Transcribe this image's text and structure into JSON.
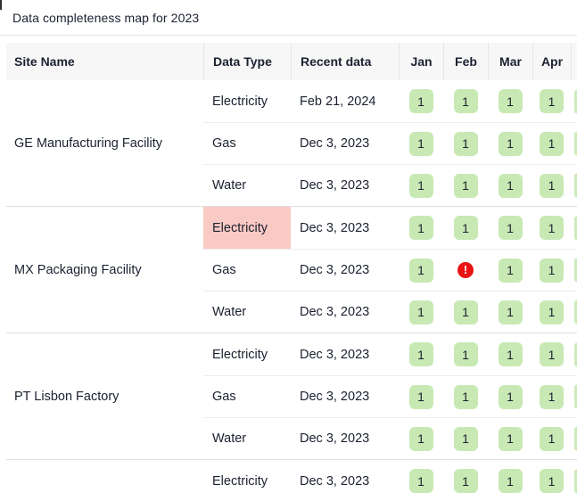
{
  "title": "Data completeness map for 2023",
  "table": {
    "columns": [
      {
        "key": "site",
        "label": "Site Name"
      },
      {
        "key": "type",
        "label": "Data Type"
      },
      {
        "key": "recent",
        "label": "Recent data"
      },
      {
        "key": "jan",
        "label": "Jan"
      },
      {
        "key": "feb",
        "label": "Feb"
      },
      {
        "key": "mar",
        "label": "Mar"
      },
      {
        "key": "apr",
        "label": "Apr"
      }
    ],
    "alert_icon": "!",
    "groups": [
      {
        "site": "GE Manufacturing Facility",
        "rows": [
          {
            "data_type": "Electricity",
            "recent_data": "Feb 21, 2024",
            "months": [
              "1",
              "1",
              "1",
              "1"
            ],
            "highlight_type_cell": false
          },
          {
            "data_type": "Gas",
            "recent_data": "Dec 3, 2023",
            "months": [
              "1",
              "1",
              "1",
              "1"
            ],
            "highlight_type_cell": false
          },
          {
            "data_type": "Water",
            "recent_data": "Dec 3, 2023",
            "months": [
              "1",
              "1",
              "1",
              "1"
            ],
            "highlight_type_cell": false
          }
        ]
      },
      {
        "site": "MX Packaging Facility",
        "rows": [
          {
            "data_type": "Electricity",
            "recent_data": "Dec 3, 2023",
            "months": [
              "1",
              "1",
              "1",
              "1"
            ],
            "highlight_type_cell": true
          },
          {
            "data_type": "Gas",
            "recent_data": "Dec 3, 2023",
            "months": [
              "1",
              "alert",
              "1",
              "1"
            ],
            "highlight_type_cell": false
          },
          {
            "data_type": "Water",
            "recent_data": "Dec 3, 2023",
            "months": [
              "1",
              "1",
              "1",
              "1"
            ],
            "highlight_type_cell": false
          }
        ]
      },
      {
        "site": "PT Lisbon Factory",
        "rows": [
          {
            "data_type": "Electricity",
            "recent_data": "Dec 3, 2023",
            "months": [
              "1",
              "1",
              "1",
              "1"
            ],
            "highlight_type_cell": false
          },
          {
            "data_type": "Gas",
            "recent_data": "Dec 3, 2023",
            "months": [
              "1",
              "1",
              "1",
              "1"
            ],
            "highlight_type_cell": false
          },
          {
            "data_type": "Water",
            "recent_data": "Dec 3, 2023",
            "months": [
              "1",
              "1",
              "1",
              "1"
            ],
            "highlight_type_cell": false
          }
        ]
      },
      {
        "site": "",
        "rows": [
          {
            "data_type": "Electricity",
            "recent_data": "Dec 3, 2023",
            "months": [
              "1",
              "1",
              "1",
              "1"
            ],
            "highlight_type_cell": false
          }
        ]
      }
    ],
    "colors": {
      "badge_green": "#c8e9b4",
      "alert_red": "#ea1313",
      "highlight_pink": "#f9c9c3",
      "text_navy": "#1b2130",
      "header_bg": "#f7f7f7"
    }
  }
}
